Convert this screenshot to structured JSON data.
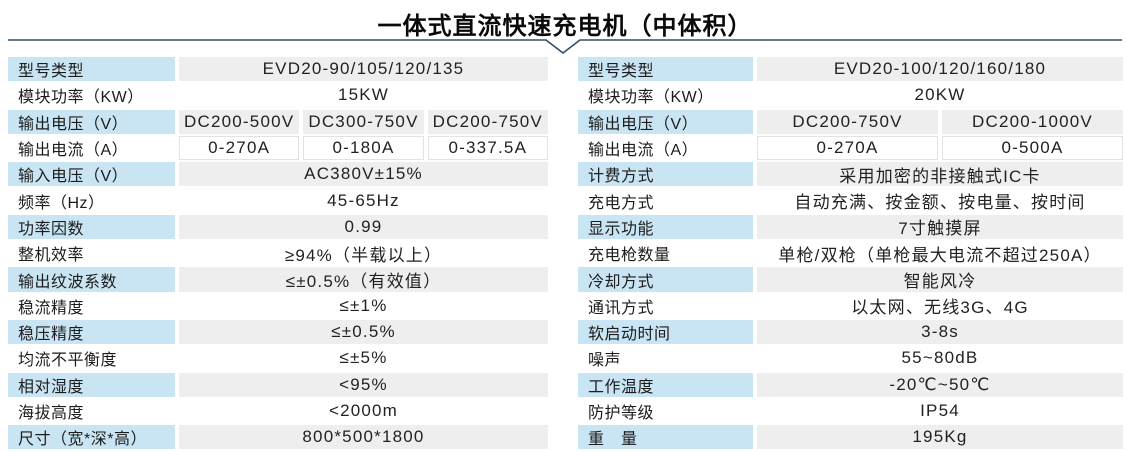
{
  "title": "一体式直流快速充电机（中体积）",
  "colors": {
    "label_bg": "#c9e5f4",
    "value_bg": "#eeeeee",
    "divider": "#2e4d68",
    "title_text": "#0a0a0a"
  },
  "left_table": {
    "rows": [
      {
        "label": "型号类型",
        "values": [
          "EVD20-90/105/120/135"
        ],
        "shaded": true
      },
      {
        "label": "模块功率（KW）",
        "values": [
          "15KW"
        ],
        "shaded": false
      },
      {
        "label": "输出电压（V）",
        "values": [
          "DC200-500V",
          "DC300-750V",
          "DC200-750V"
        ],
        "shaded": true
      },
      {
        "label": "输出电流（A）",
        "values": [
          "0-270A",
          "0-180A",
          "0-337.5A"
        ],
        "shaded": false
      },
      {
        "label": "输入电压（V）",
        "values": [
          "AC380V±15%"
        ],
        "shaded": true
      },
      {
        "label": "频率（Hz）",
        "values": [
          "45-65Hz"
        ],
        "shaded": false
      },
      {
        "label": "功率因数",
        "values": [
          "0.99"
        ],
        "shaded": true
      },
      {
        "label": "整机效率",
        "values": [
          "≥94%（半载以上）"
        ],
        "shaded": false
      },
      {
        "label": "输出纹波系数",
        "values": [
          "≤±0.5%（有效值）"
        ],
        "shaded": true
      },
      {
        "label": "稳流精度",
        "values": [
          "≤±1%"
        ],
        "shaded": false
      },
      {
        "label": "稳压精度",
        "values": [
          "≤±0.5%"
        ],
        "shaded": true
      },
      {
        "label": "均流不平衡度",
        "values": [
          "≤±5%"
        ],
        "shaded": false
      },
      {
        "label": "相对湿度",
        "values": [
          "<95%"
        ],
        "shaded": true
      },
      {
        "label": "海拔高度",
        "values": [
          "<2000m"
        ],
        "shaded": false
      },
      {
        "label": "尺寸（宽*深*高）",
        "values": [
          "800*500*1800"
        ],
        "shaded": true
      }
    ]
  },
  "right_table": {
    "rows": [
      {
        "label": "型号类型",
        "values": [
          "EVD20-100/120/160/180"
        ],
        "shaded": true
      },
      {
        "label": "模块功率（KW）",
        "values": [
          "20KW"
        ],
        "shaded": false
      },
      {
        "label": "输出电压（V）",
        "values": [
          "DC200-750V",
          "DC200-1000V"
        ],
        "shaded": true
      },
      {
        "label": "输出电流（A）",
        "values": [
          "0-270A",
          "0-500A"
        ],
        "shaded": false
      },
      {
        "label": "计费方式",
        "values": [
          "采用加密的非接触式IC卡"
        ],
        "shaded": true
      },
      {
        "label": "充电方式",
        "values": [
          "自动充满、按金额、按电量、按时间"
        ],
        "shaded": false
      },
      {
        "label": "显示功能",
        "values": [
          "7寸触摸屏"
        ],
        "shaded": true
      },
      {
        "label": "充电枪数量",
        "values": [
          "单枪/双枪（单枪最大电流不超过250A）"
        ],
        "shaded": false
      },
      {
        "label": "冷却方式",
        "values": [
          "智能风冷"
        ],
        "shaded": true
      },
      {
        "label": "通讯方式",
        "values": [
          "以太网、无线3G、4G"
        ],
        "shaded": false
      },
      {
        "label": "软启动时间",
        "values": [
          "3-8s"
        ],
        "shaded": true
      },
      {
        "label": "噪声",
        "values": [
          "55~80dB"
        ],
        "shaded": false
      },
      {
        "label": "工作温度",
        "values": [
          "-20℃~50℃"
        ],
        "shaded": true
      },
      {
        "label": "防护等级",
        "values": [
          "IP54"
        ],
        "shaded": false
      },
      {
        "label": "重　量",
        "values": [
          "195Kg"
        ],
        "shaded": true
      }
    ]
  }
}
